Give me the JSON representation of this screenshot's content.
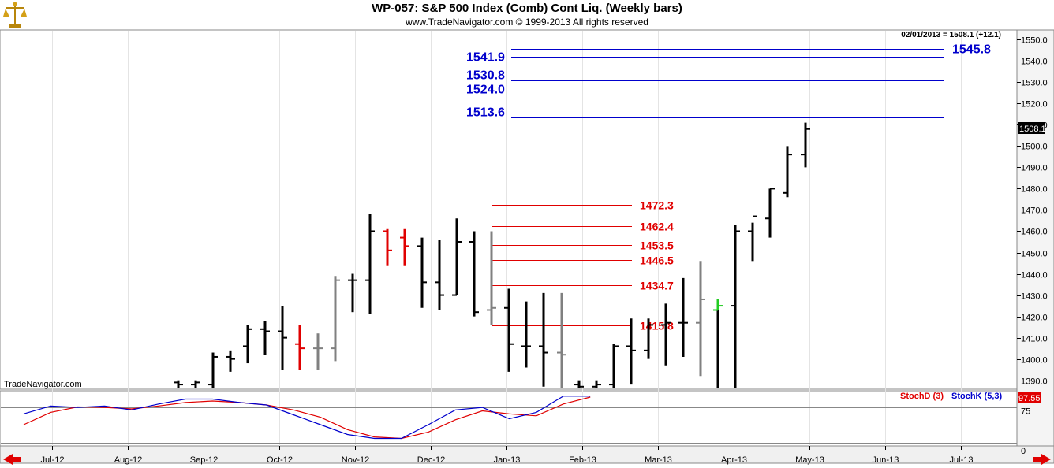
{
  "header": {
    "title": "WP-057:  S&P 500 Index (Comb) Cont Liq.  (Weekly bars)",
    "copyright": "www.TradeNavigator.com © 1999-2013 All rights reserved",
    "quote": "02/01/2013 = 1508.1 (+12.1)",
    "last_price_badge": "1508.1",
    "watermark": "TradeNavigator.com"
  },
  "colors": {
    "up_bar": "#000000",
    "neutral_bar": "#808080",
    "down_bar": "#e00000",
    "highlight_bar": "#22cc22",
    "resistance": "#0000cc",
    "support": "#e00000",
    "stochD": "#e00000",
    "stochK": "#0000cc"
  },
  "icons": {
    "logo": "brass-scale-icon",
    "scroll_left": "scroll-left-arrow-icon",
    "scroll_right": "scroll-right-arrow-icon"
  },
  "chart_data": {
    "type": "ohlc",
    "price_axis": {
      "ticks": [
        "1550.0",
        "1540.0",
        "1530.0",
        "1520.0",
        "1510.0",
        "1500.0",
        "1490.0",
        "1480.0",
        "1470.0",
        "1460.0",
        "1450.0",
        "1440.0",
        "1430.0",
        "1420.0",
        "1410.0",
        "1400.0",
        "1390.0"
      ],
      "ylim": [
        1386,
        1554
      ]
    },
    "time_axis": {
      "labels": [
        "Jul-12",
        "Aug-12",
        "Sep-12",
        "Oct-12",
        "Nov-12",
        "Dec-12",
        "Jan-13",
        "Feb-13",
        "Mar-13",
        "Apr-13",
        "May-13",
        "Jun-13",
        "Jul-13"
      ]
    },
    "bars": [
      {
        "week": 22,
        "high": 1390,
        "low": 1386,
        "open": 1389,
        "close": 1388,
        "color": "up"
      },
      {
        "week": 23,
        "high": 1390,
        "low": 1386,
        "open": 1388,
        "close": 1389,
        "color": "up"
      },
      {
        "week": 24,
        "high": 1403,
        "low": 1386,
        "open": 1388,
        "close": 1401,
        "color": "up"
      },
      {
        "week": 25,
        "high": 1404,
        "low": 1394,
        "open": 1401,
        "close": 1400,
        "color": "up"
      },
      {
        "week": 26,
        "high": 1416,
        "low": 1398,
        "open": 1406,
        "close": 1414,
        "color": "up"
      },
      {
        "week": 27,
        "high": 1418,
        "low": 1402,
        "open": 1414,
        "close": 1413,
        "color": "up"
      },
      {
        "week": 28,
        "high": 1425,
        "low": 1395,
        "open": 1413,
        "close": 1410,
        "color": "up"
      },
      {
        "week": 29,
        "high": 1416,
        "low": 1395,
        "open": 1407,
        "close": 1405,
        "color": "down"
      },
      {
        "week": 30,
        "high": 1412,
        "low": 1395,
        "open": 1405,
        "close": 1405,
        "color": "neutral"
      },
      {
        "week": 31,
        "high": 1439,
        "low": 1399,
        "open": 1405,
        "close": 1437,
        "color": "neutral"
      },
      {
        "week": 32,
        "high": 1440,
        "low": 1422,
        "open": 1437,
        "close": 1437,
        "color": "up"
      },
      {
        "week": 33,
        "high": 1468,
        "low": 1421,
        "open": 1437,
        "close": 1460,
        "color": "up"
      },
      {
        "week": 34,
        "high": 1461,
        "low": 1444,
        "open": 1460,
        "close": 1451,
        "color": "down"
      },
      {
        "week": 35,
        "high": 1461,
        "low": 1444,
        "open": 1457,
        "close": 1453,
        "color": "down"
      },
      {
        "week": 36,
        "high": 1457,
        "low": 1424,
        "open": 1453,
        "close": 1436,
        "color": "up"
      },
      {
        "week": 37,
        "high": 1456,
        "low": 1423,
        "open": 1436,
        "close": 1430,
        "color": "up"
      },
      {
        "week": 38,
        "high": 1466,
        "low": 1430,
        "open": 1430,
        "close": 1455,
        "color": "up"
      },
      {
        "week": 39,
        "high": 1460,
        "low": 1420,
        "open": 1455,
        "close": 1422,
        "color": "up"
      },
      {
        "week": 40,
        "high": 1460,
        "low": 1416,
        "open": 1423,
        "close": 1424,
        "color": "neutral"
      },
      {
        "week": 41,
        "high": 1433,
        "low": 1394,
        "open": 1424,
        "close": 1407,
        "color": "up"
      },
      {
        "week": 42,
        "high": 1427,
        "low": 1396,
        "open": 1406,
        "close": 1406,
        "color": "up"
      },
      {
        "week": 43,
        "high": 1431,
        "low": 1387,
        "open": 1406,
        "close": 1403,
        "color": "up"
      },
      {
        "week": 44,
        "high": 1431,
        "low": 1386,
        "open": 1403,
        "close": 1402,
        "color": "neutral"
      },
      {
        "week": 45,
        "high": 1390,
        "low": 1386,
        "open": 1388,
        "close": 1387,
        "color": "up"
      },
      {
        "week": 46,
        "high": 1390,
        "low": 1386,
        "open": 1387,
        "close": 1388,
        "color": "up"
      },
      {
        "week": 47,
        "high": 1407,
        "low": 1386,
        "open": 1388,
        "close": 1406,
        "color": "up"
      },
      {
        "week": 48,
        "high": 1419,
        "low": 1388,
        "open": 1406,
        "close": 1404,
        "color": "up"
      },
      {
        "week": 49,
        "high": 1419,
        "low": 1400,
        "open": 1404,
        "close": 1416,
        "color": "up"
      },
      {
        "week": 50,
        "high": 1426,
        "low": 1397,
        "open": 1416,
        "close": 1417,
        "color": "up"
      },
      {
        "week": 51,
        "high": 1438,
        "low": 1401,
        "open": 1417,
        "close": 1417,
        "color": "up"
      },
      {
        "week": 52,
        "high": 1446,
        "low": 1392,
        "open": 1417,
        "close": 1428,
        "color": "neutral"
      },
      {
        "week": 53,
        "high": 1428,
        "low": 1386,
        "open": 1423,
        "close": 1425,
        "color": "highlight"
      },
      {
        "week": 54,
        "high": 1463,
        "low": 1386,
        "open": 1425,
        "close": 1460,
        "color": "up"
      },
      {
        "week": 55,
        "high": 1464,
        "low": 1446,
        "open": 1460,
        "close": 1467,
        "color": "up"
      },
      {
        "week": 56,
        "high": 1480,
        "low": 1457,
        "open": 1466,
        "close": 1480,
        "color": "up"
      },
      {
        "week": 57,
        "high": 1500,
        "low": 1476,
        "open": 1478,
        "close": 1496,
        "color": "up"
      },
      {
        "week": 58,
        "high": 1511,
        "low": 1490,
        "open": 1496,
        "close": 1508,
        "color": "up"
      }
    ],
    "resistance_levels": [
      {
        "value": 1545.8,
        "label": "1545.8"
      },
      {
        "value": 1541.9,
        "label": "1541.9"
      },
      {
        "value": 1530.8,
        "label": "1530.8"
      },
      {
        "value": 1524.0,
        "label": "1524.0"
      },
      {
        "value": 1513.6,
        "label": "1513.6"
      }
    ],
    "support_levels": [
      {
        "value": 1472.3,
        "label": "1472.3"
      },
      {
        "value": 1462.4,
        "label": "1462.4"
      },
      {
        "value": 1453.5,
        "label": "1453.5"
      },
      {
        "value": 1446.5,
        "label": "1446.5"
      },
      {
        "value": 1434.7,
        "label": "1434.7"
      },
      {
        "value": 1415.8,
        "label": "1415.8"
      }
    ],
    "stochastic": {
      "legend": {
        "d": "StochD (3)",
        "k": "StochK (5,3)"
      },
      "last_value": "97.55",
      "ticks": [
        "75",
        "0"
      ],
      "ylim": [
        0,
        100
      ],
      "k": [
        [
          18,
          62
        ],
        [
          20,
          78
        ],
        [
          22,
          75
        ],
        [
          24,
          78
        ],
        [
          26,
          70
        ],
        [
          28,
          82
        ],
        [
          30,
          92
        ],
        [
          32,
          92
        ],
        [
          34,
          85
        ],
        [
          36,
          80
        ],
        [
          38,
          60
        ],
        [
          40,
          40
        ],
        [
          42,
          20
        ],
        [
          44,
          12
        ],
        [
          46,
          12
        ],
        [
          48,
          40
        ],
        [
          50,
          70
        ],
        [
          52,
          75
        ],
        [
          54,
          52
        ],
        [
          56,
          65
        ],
        [
          58,
          98
        ],
        [
          60,
          98
        ]
      ],
      "d": [
        [
          18,
          40
        ],
        [
          20,
          65
        ],
        [
          22,
          76
        ],
        [
          24,
          75
        ],
        [
          26,
          72
        ],
        [
          28,
          78
        ],
        [
          30,
          85
        ],
        [
          32,
          88
        ],
        [
          34,
          85
        ],
        [
          36,
          80
        ],
        [
          38,
          70
        ],
        [
          40,
          55
        ],
        [
          42,
          30
        ],
        [
          44,
          15
        ],
        [
          46,
          12
        ],
        [
          48,
          25
        ],
        [
          50,
          50
        ],
        [
          52,
          68
        ],
        [
          54,
          62
        ],
        [
          56,
          58
        ],
        [
          58,
          82
        ],
        [
          60,
          96
        ]
      ]
    }
  }
}
